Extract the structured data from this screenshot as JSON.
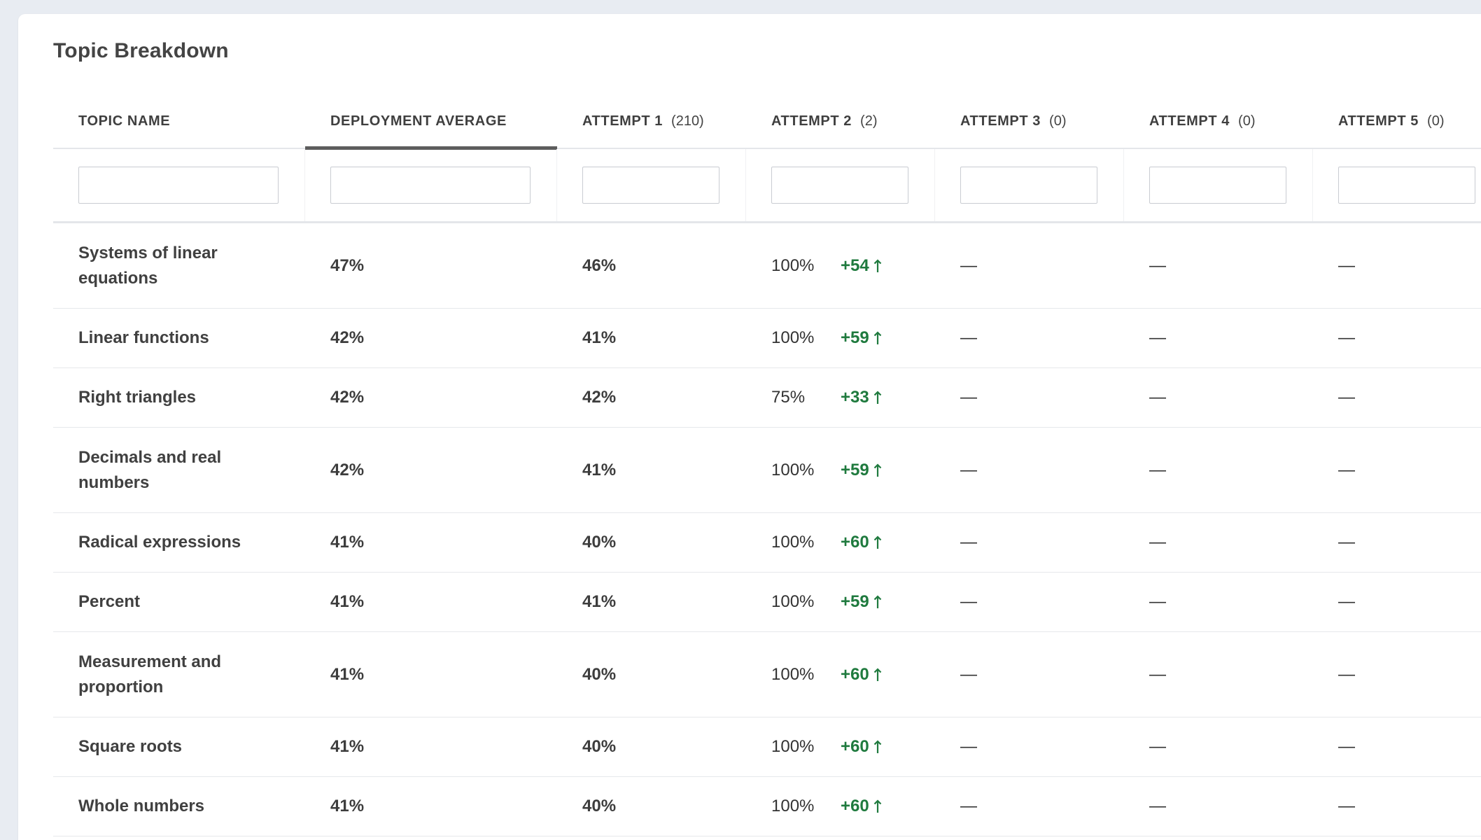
{
  "title": "Topic Breakdown",
  "colors": {
    "background": "#e8ecf2",
    "card": "#ffffff",
    "positive_delta": "#1f7a3e",
    "active_tab_underline": "#5d5d5d"
  },
  "columns": [
    {
      "label": "TOPIC NAME",
      "count": ""
    },
    {
      "label": "DEPLOYMENT AVERAGE",
      "count": "",
      "active": true
    },
    {
      "label": "ATTEMPT 1",
      "count": "(210)"
    },
    {
      "label": "ATTEMPT 2",
      "count": "(2)"
    },
    {
      "label": "ATTEMPT 3",
      "count": "(0)"
    },
    {
      "label": "ATTEMPT 4",
      "count": "(0)"
    },
    {
      "label": "ATTEMPT 5",
      "count": "(0)"
    }
  ],
  "filters": [
    "",
    "",
    "",
    "",
    "",
    "",
    ""
  ],
  "rows": [
    {
      "topic": "Systems of linear equations",
      "deployment_avg": "47%",
      "attempt1": "46%",
      "attempt2": "100%",
      "delta": "+54",
      "attempt3": "—",
      "attempt4": "—",
      "attempt5": "—"
    },
    {
      "topic": "Linear functions",
      "deployment_avg": "42%",
      "attempt1": "41%",
      "attempt2": "100%",
      "delta": "+59",
      "attempt3": "—",
      "attempt4": "—",
      "attempt5": "—"
    },
    {
      "topic": "Right triangles",
      "deployment_avg": "42%",
      "attempt1": "42%",
      "attempt2": "75%",
      "delta": "+33",
      "attempt3": "—",
      "attempt4": "—",
      "attempt5": "—"
    },
    {
      "topic": "Decimals and real numbers",
      "deployment_avg": "42%",
      "attempt1": "41%",
      "attempt2": "100%",
      "delta": "+59",
      "attempt3": "—",
      "attempt4": "—",
      "attempt5": "—"
    },
    {
      "topic": "Radical expressions",
      "deployment_avg": "41%",
      "attempt1": "40%",
      "attempt2": "100%",
      "delta": "+60",
      "attempt3": "—",
      "attempt4": "—",
      "attempt5": "—"
    },
    {
      "topic": "Percent",
      "deployment_avg": "41%",
      "attempt1": "41%",
      "attempt2": "100%",
      "delta": "+59",
      "attempt3": "—",
      "attempt4": "—",
      "attempt5": "—"
    },
    {
      "topic": "Measurement and proportion",
      "deployment_avg": "41%",
      "attempt1": "40%",
      "attempt2": "100%",
      "delta": "+60",
      "attempt3": "—",
      "attempt4": "—",
      "attempt5": "—"
    },
    {
      "topic": "Square roots",
      "deployment_avg": "41%",
      "attempt1": "40%",
      "attempt2": "100%",
      "delta": "+60",
      "attempt3": "—",
      "attempt4": "—",
      "attempt5": "—"
    },
    {
      "topic": "Whole numbers",
      "deployment_avg": "41%",
      "attempt1": "40%",
      "attempt2": "100%",
      "delta": "+60",
      "attempt3": "—",
      "attempt4": "—",
      "attempt5": "—"
    }
  ]
}
